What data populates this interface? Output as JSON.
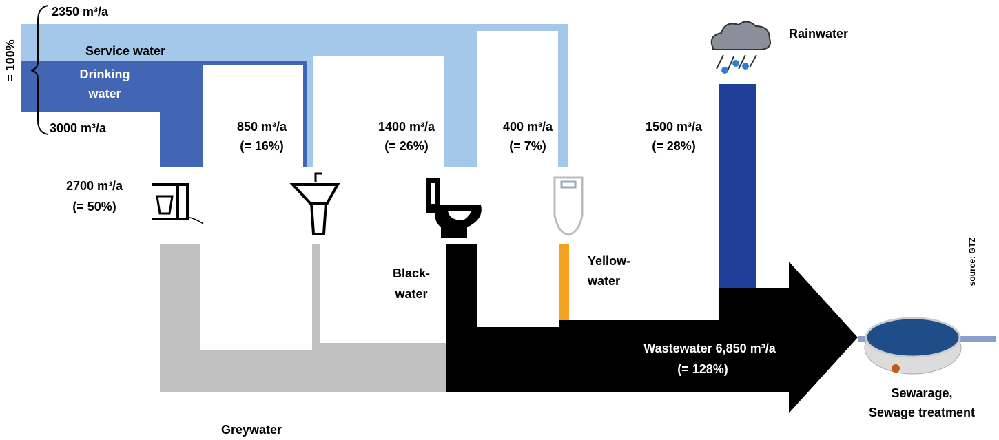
{
  "total_label": "= 100%",
  "service_water": {
    "label": "Service water",
    "amount": "2350 m³/a"
  },
  "drinking_water": {
    "label": [
      "Drinking",
      "water"
    ],
    "amount": "3000 m³/a"
  },
  "uses": {
    "kitchen": {
      "amount": "2700 m³/a",
      "share": "(= 50%)"
    },
    "sink": {
      "amount": "850 m³/a",
      "share": "(= 16%)"
    },
    "toilet": {
      "amount": "1400 m³/a",
      "share": "(= 26%)"
    },
    "urinal": {
      "amount": "400 m³/a",
      "share": "(= 7%)"
    },
    "rain": {
      "amount": "1500 m³/a",
      "share": "(= 28%)"
    }
  },
  "rainwater_label": "Rainwater",
  "blackwater_label": [
    "Black-",
    "water"
  ],
  "yellowwater_label": [
    "Yellow-",
    "water"
  ],
  "greywater_label": "Greywater",
  "wastewater": {
    "label": "Wastewater 6,850 m³/a",
    "share": "(= 128%)"
  },
  "treatment_label": [
    "Sewarage,",
    "Sewage treatment"
  ],
  "source": "source: GTZ"
}
